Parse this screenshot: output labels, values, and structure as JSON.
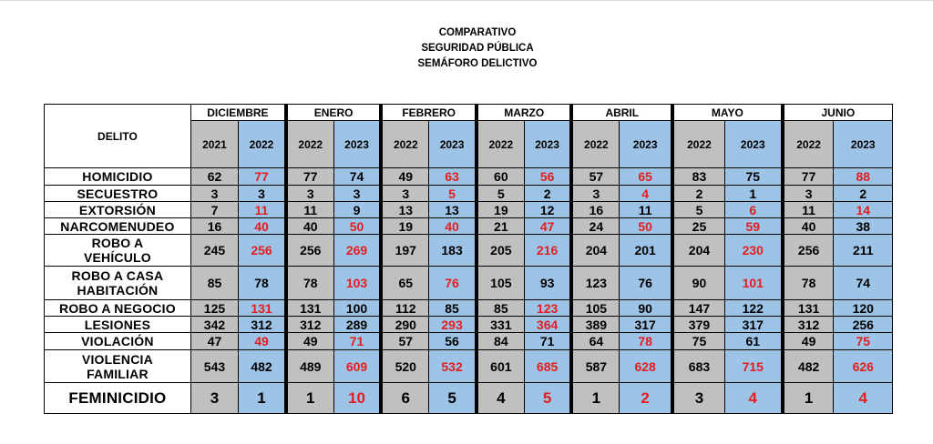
{
  "title_lines": [
    "COMPARATIVO",
    "SEGURIDAD PÚBLICA",
    "SEMÁFORO DELICTIVO"
  ],
  "delito_header": "DELITO",
  "months": [
    {
      "name": "DICIEMBRE",
      "years": [
        "2021",
        "2022"
      ]
    },
    {
      "name": "ENERO",
      "years": [
        "2022",
        "2023"
      ]
    },
    {
      "name": "FEBRERO",
      "years": [
        "2022",
        "2023"
      ]
    },
    {
      "name": "MARZO",
      "years": [
        "2022",
        "2023"
      ]
    },
    {
      "name": "ABRIL",
      "years": [
        "2022",
        "2023"
      ]
    },
    {
      "name": "MAYO",
      "years": [
        "2022",
        "2023"
      ]
    },
    {
      "name": "JUNIO",
      "years": [
        "2022",
        "2023"
      ]
    }
  ],
  "colors": {
    "highlight_red": "#e41e1e",
    "prev_year_bg": "#c0c0c0",
    "curr_year_bg": "#9dc3e6"
  },
  "rows": [
    {
      "crime": "HOMICIDIO",
      "values": [
        "62",
        "77",
        "77",
        "74",
        "49",
        "63",
        "60",
        "56",
        "57",
        "65",
        "83",
        "75",
        "77",
        "88"
      ],
      "red": [
        false,
        true,
        false,
        false,
        false,
        true,
        false,
        true,
        false,
        true,
        false,
        false,
        false,
        true
      ]
    },
    {
      "crime": "SECUESTRO",
      "values": [
        "3",
        "3",
        "3",
        "3",
        "3",
        "5",
        "5",
        "2",
        "3",
        "4",
        "2",
        "1",
        "3",
        "2"
      ],
      "red": [
        false,
        false,
        false,
        false,
        false,
        true,
        false,
        false,
        false,
        true,
        false,
        false,
        false,
        false
      ]
    },
    {
      "crime": "EXTORSIÓN",
      "values": [
        "7",
        "11",
        "11",
        "9",
        "13",
        "13",
        "19",
        "12",
        "16",
        "11",
        "5",
        "6",
        "11",
        "14"
      ],
      "red": [
        false,
        true,
        false,
        false,
        false,
        false,
        false,
        false,
        false,
        false,
        false,
        true,
        false,
        true
      ]
    },
    {
      "crime": "NARCOMENUDEO",
      "values": [
        "16",
        "40",
        "40",
        "50",
        "19",
        "40",
        "21",
        "47",
        "24",
        "50",
        "25",
        "59",
        "40",
        "38"
      ],
      "red": [
        false,
        true,
        false,
        true,
        false,
        true,
        false,
        true,
        false,
        true,
        false,
        true,
        false,
        false
      ]
    },
    {
      "crime": "ROBO A VEHÍCULO",
      "lines": [
        "ROBO A",
        "VEHÍCULO"
      ],
      "values": [
        "245",
        "256",
        "256",
        "269",
        "197",
        "183",
        "205",
        "216",
        "204",
        "201",
        "204",
        "230",
        "256",
        "211"
      ],
      "red": [
        false,
        true,
        false,
        true,
        false,
        false,
        false,
        true,
        false,
        false,
        false,
        true,
        false,
        false
      ]
    },
    {
      "crime": "ROBO A CASA HABITACIÓN",
      "lines": [
        "ROBO A CASA",
        "HABITACIÓN"
      ],
      "values": [
        "85",
        "78",
        "78",
        "103",
        "65",
        "76",
        "105",
        "93",
        "123",
        "76",
        "90",
        "101",
        "78",
        "74"
      ],
      "red": [
        false,
        false,
        false,
        true,
        false,
        true,
        false,
        false,
        false,
        false,
        false,
        true,
        false,
        false
      ]
    },
    {
      "crime": "ROBO A NEGOCIO",
      "values": [
        "125",
        "131",
        "131",
        "100",
        "112",
        "85",
        "85",
        "123",
        "105",
        "90",
        "147",
        "122",
        "131",
        "120"
      ],
      "red": [
        false,
        true,
        false,
        false,
        false,
        false,
        false,
        true,
        false,
        false,
        false,
        false,
        false,
        false
      ]
    },
    {
      "crime": "LESIONES",
      "values": [
        "342",
        "312",
        "312",
        "289",
        "290",
        "293",
        "331",
        "364",
        "389",
        "317",
        "379",
        "317",
        "312",
        "256"
      ],
      "red": [
        false,
        false,
        false,
        false,
        false,
        true,
        false,
        true,
        false,
        false,
        false,
        false,
        false,
        false
      ]
    },
    {
      "crime": "VIOLACIÓN",
      "values": [
        "47",
        "49",
        "49",
        "71",
        "57",
        "56",
        "84",
        "71",
        "64",
        "78",
        "75",
        "61",
        "49",
        "75"
      ],
      "red": [
        false,
        true,
        false,
        true,
        false,
        false,
        false,
        false,
        false,
        true,
        false,
        false,
        false,
        true
      ]
    },
    {
      "crime": "VIOLENCIA FAMILIAR",
      "lines": [
        "VIOLENCIA",
        "FAMILIAR"
      ],
      "values": [
        "543",
        "482",
        "489",
        "609",
        "520",
        "532",
        "601",
        "685",
        "587",
        "628",
        "683",
        "715",
        "482",
        "626"
      ],
      "red": [
        false,
        false,
        false,
        true,
        false,
        true,
        false,
        true,
        false,
        true,
        false,
        true,
        false,
        true
      ]
    },
    {
      "crime": "FEMINICIDIO",
      "values": [
        "3",
        "1",
        "1",
        "10",
        "6",
        "5",
        "4",
        "5",
        "1",
        "2",
        "3",
        "4",
        "1",
        "4"
      ],
      "red": [
        false,
        false,
        false,
        true,
        false,
        false,
        false,
        true,
        false,
        true,
        false,
        true,
        false,
        true
      ]
    }
  ]
}
